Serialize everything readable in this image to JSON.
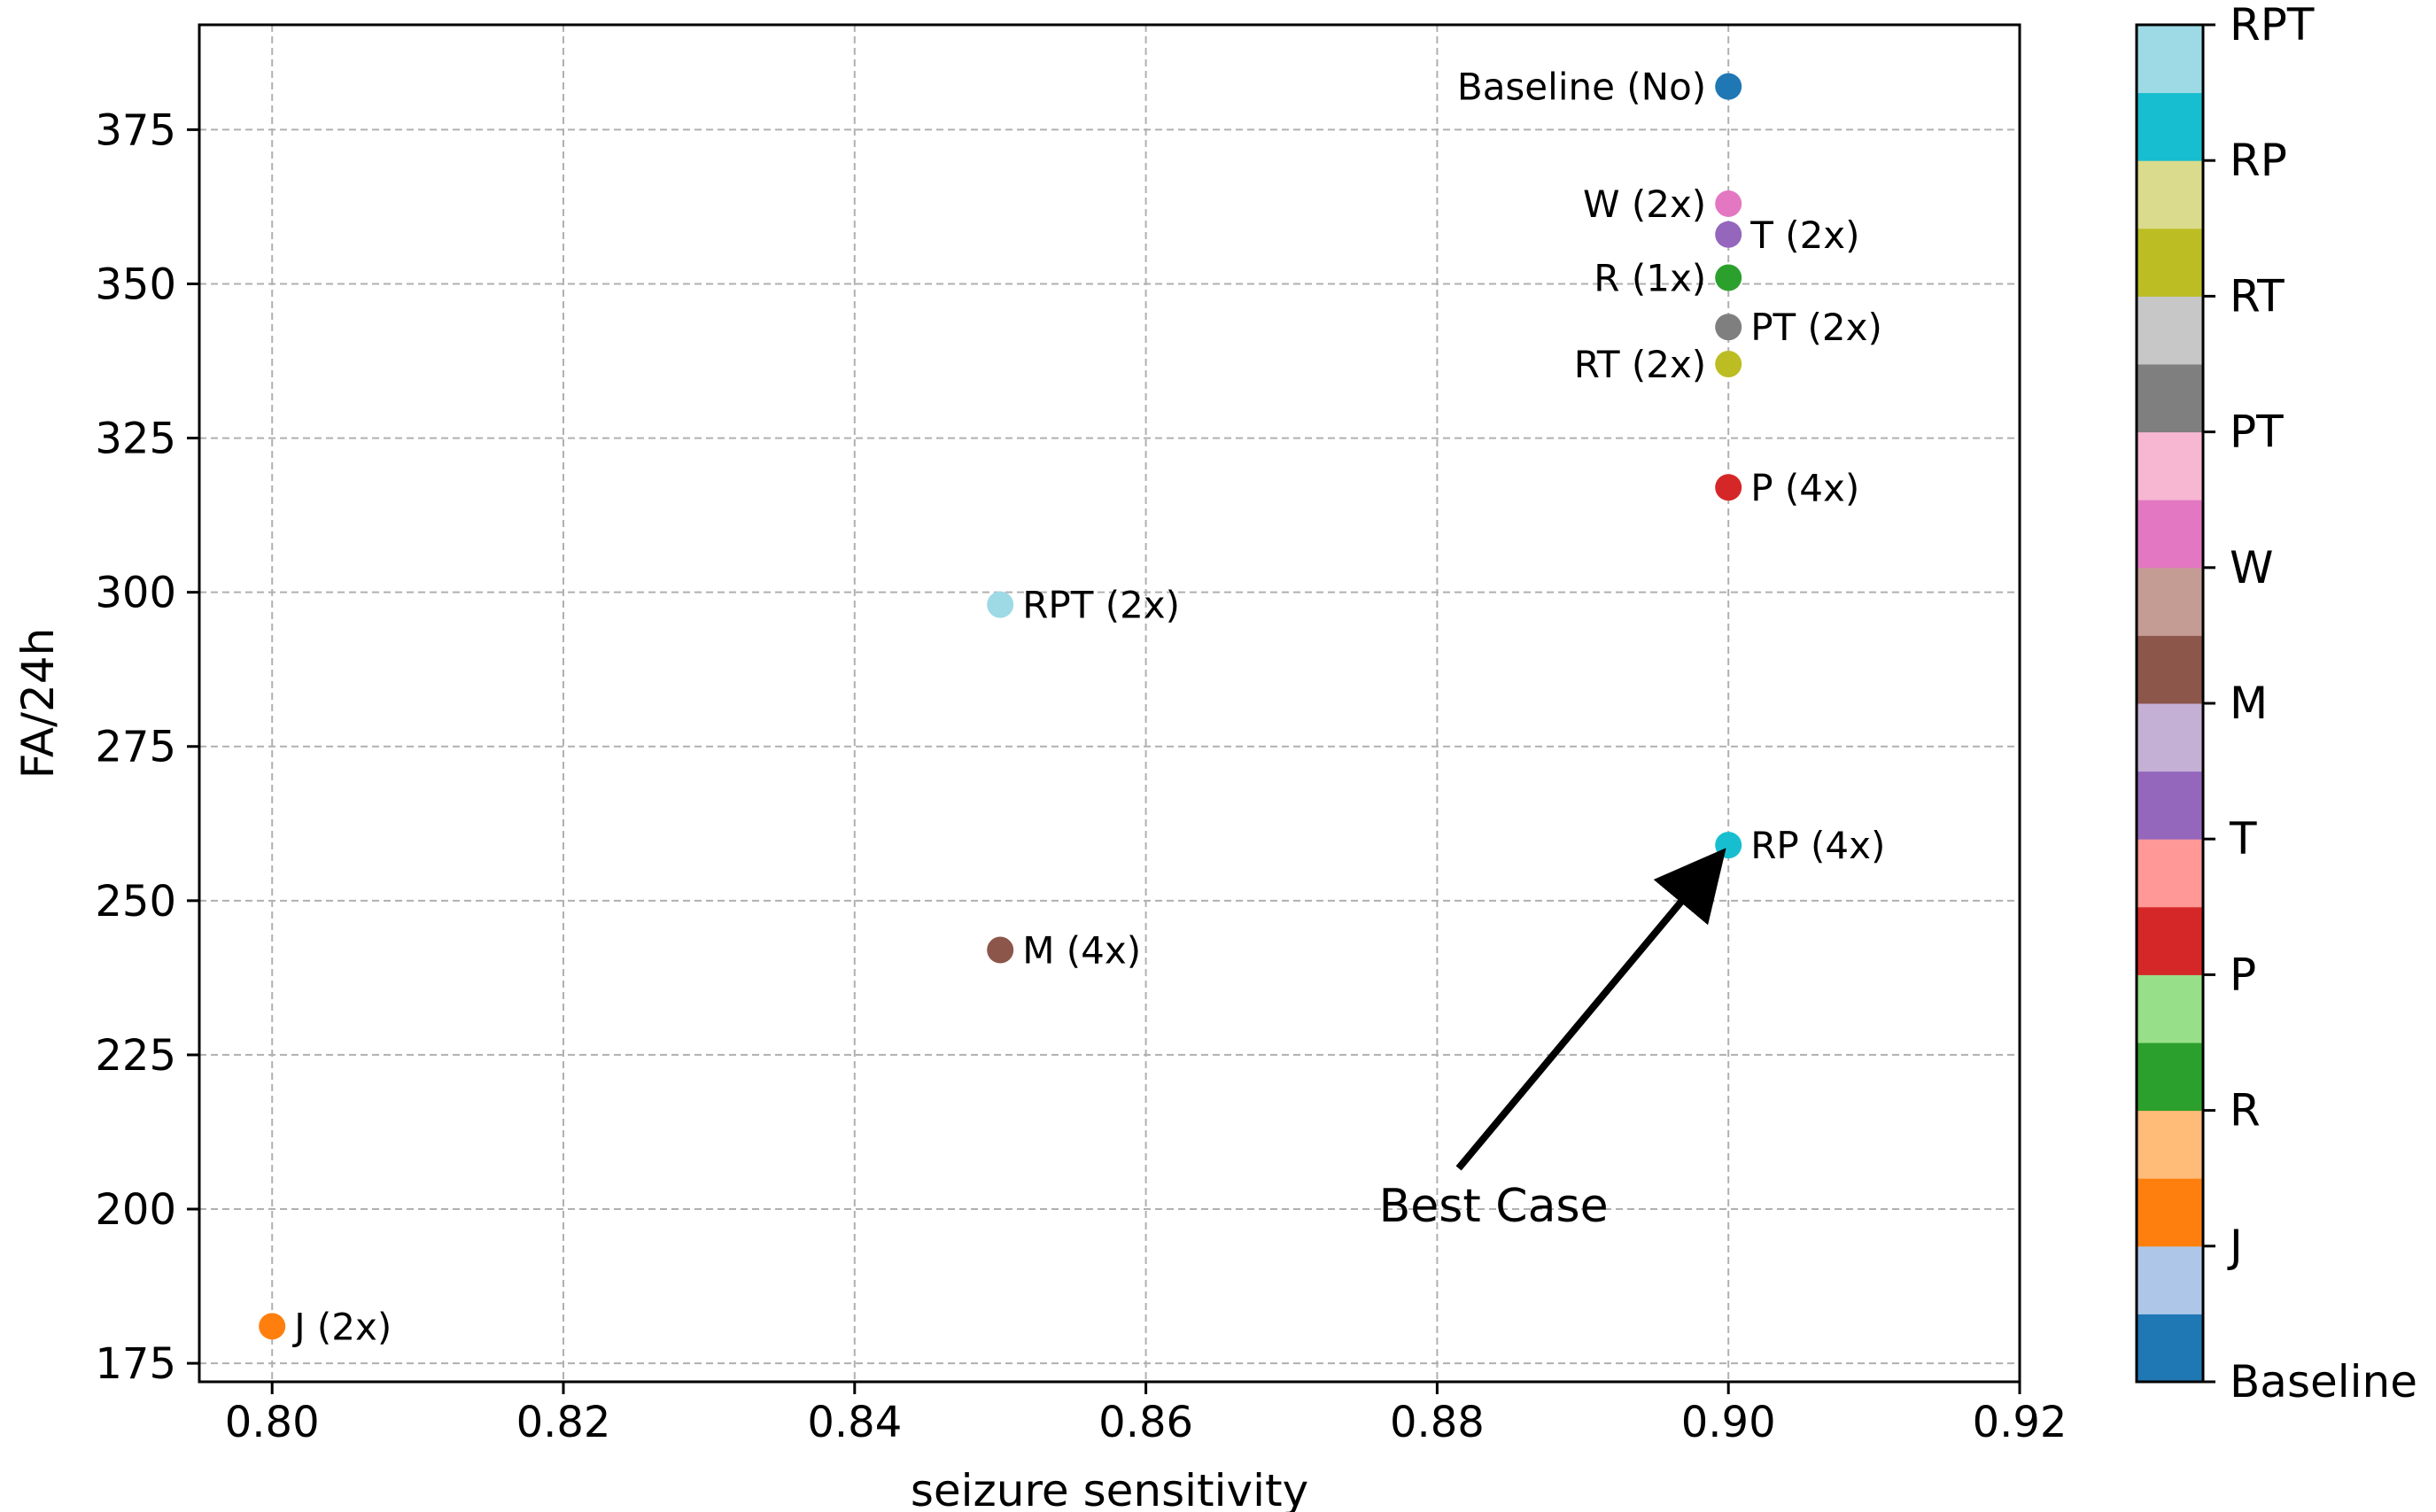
{
  "chart_data": {
    "type": "scatter",
    "xlabel": "seizure sensitivity",
    "ylabel": "FA/24h",
    "xlim": [
      0.795,
      0.92
    ],
    "ylim": [
      172,
      392
    ],
    "xticks": [
      "0.80",
      "0.82",
      "0.84",
      "0.86",
      "0.88",
      "0.90",
      "0.92"
    ],
    "yticks": [
      "175",
      "200",
      "225",
      "250",
      "275",
      "300",
      "325",
      "350",
      "375"
    ],
    "grid": true,
    "points": [
      {
        "label": "Baseline (No)",
        "x": 0.9,
        "y": 382,
        "color": "#1f77b4",
        "label_side": "left"
      },
      {
        "label": "W (2x)",
        "x": 0.9,
        "y": 363,
        "color": "#e377c2",
        "label_side": "left"
      },
      {
        "label": "T (2x)",
        "x": 0.9,
        "y": 358,
        "color": "#9467bd",
        "label_side": "right"
      },
      {
        "label": "R (1x)",
        "x": 0.9,
        "y": 351,
        "color": "#2ca02c",
        "label_side": "left"
      },
      {
        "label": "PT (2x)",
        "x": 0.9,
        "y": 343,
        "color": "#7f7f7f",
        "label_side": "right"
      },
      {
        "label": "RT (2x)",
        "x": 0.9,
        "y": 337,
        "color": "#bcbd22",
        "label_side": "left"
      },
      {
        "label": "P (4x)",
        "x": 0.9,
        "y": 317,
        "color": "#d62728",
        "label_side": "right"
      },
      {
        "label": "RPT (2x)",
        "x": 0.85,
        "y": 298,
        "color": "#9edae5",
        "label_side": "right"
      },
      {
        "label": "RP (4x)",
        "x": 0.9,
        "y": 259,
        "color": "#17becf",
        "label_side": "right"
      },
      {
        "label": "M (4x)",
        "x": 0.85,
        "y": 242,
        "color": "#8c564b",
        "label_side": "right"
      },
      {
        "label": "J (2x)",
        "x": 0.8,
        "y": 181,
        "color": "#ff7f0e",
        "label_side": "right"
      }
    ],
    "annotation": {
      "text": "Best Case",
      "text_x": 0.876,
      "text_y": 198,
      "arrow_to_x": 0.9,
      "arrow_to_y": 259
    },
    "colorbar": {
      "colors": [
        "#1f77b4",
        "#aec7e8",
        "#ff7f0e",
        "#ffbb78",
        "#2ca02c",
        "#98df8a",
        "#d62728",
        "#ff9896",
        "#9467bd",
        "#c5b0d5",
        "#8c564b",
        "#c49c94",
        "#e377c2",
        "#f7b6d2",
        "#7f7f7f",
        "#c7c7c7",
        "#bcbd22",
        "#dbdb8d",
        "#17becf",
        "#9edae5"
      ],
      "tick_labels": [
        "Baseline",
        "J",
        "R",
        "P",
        "T",
        "M",
        "W",
        "PT",
        "RT",
        "RP",
        "RPT"
      ]
    }
  }
}
